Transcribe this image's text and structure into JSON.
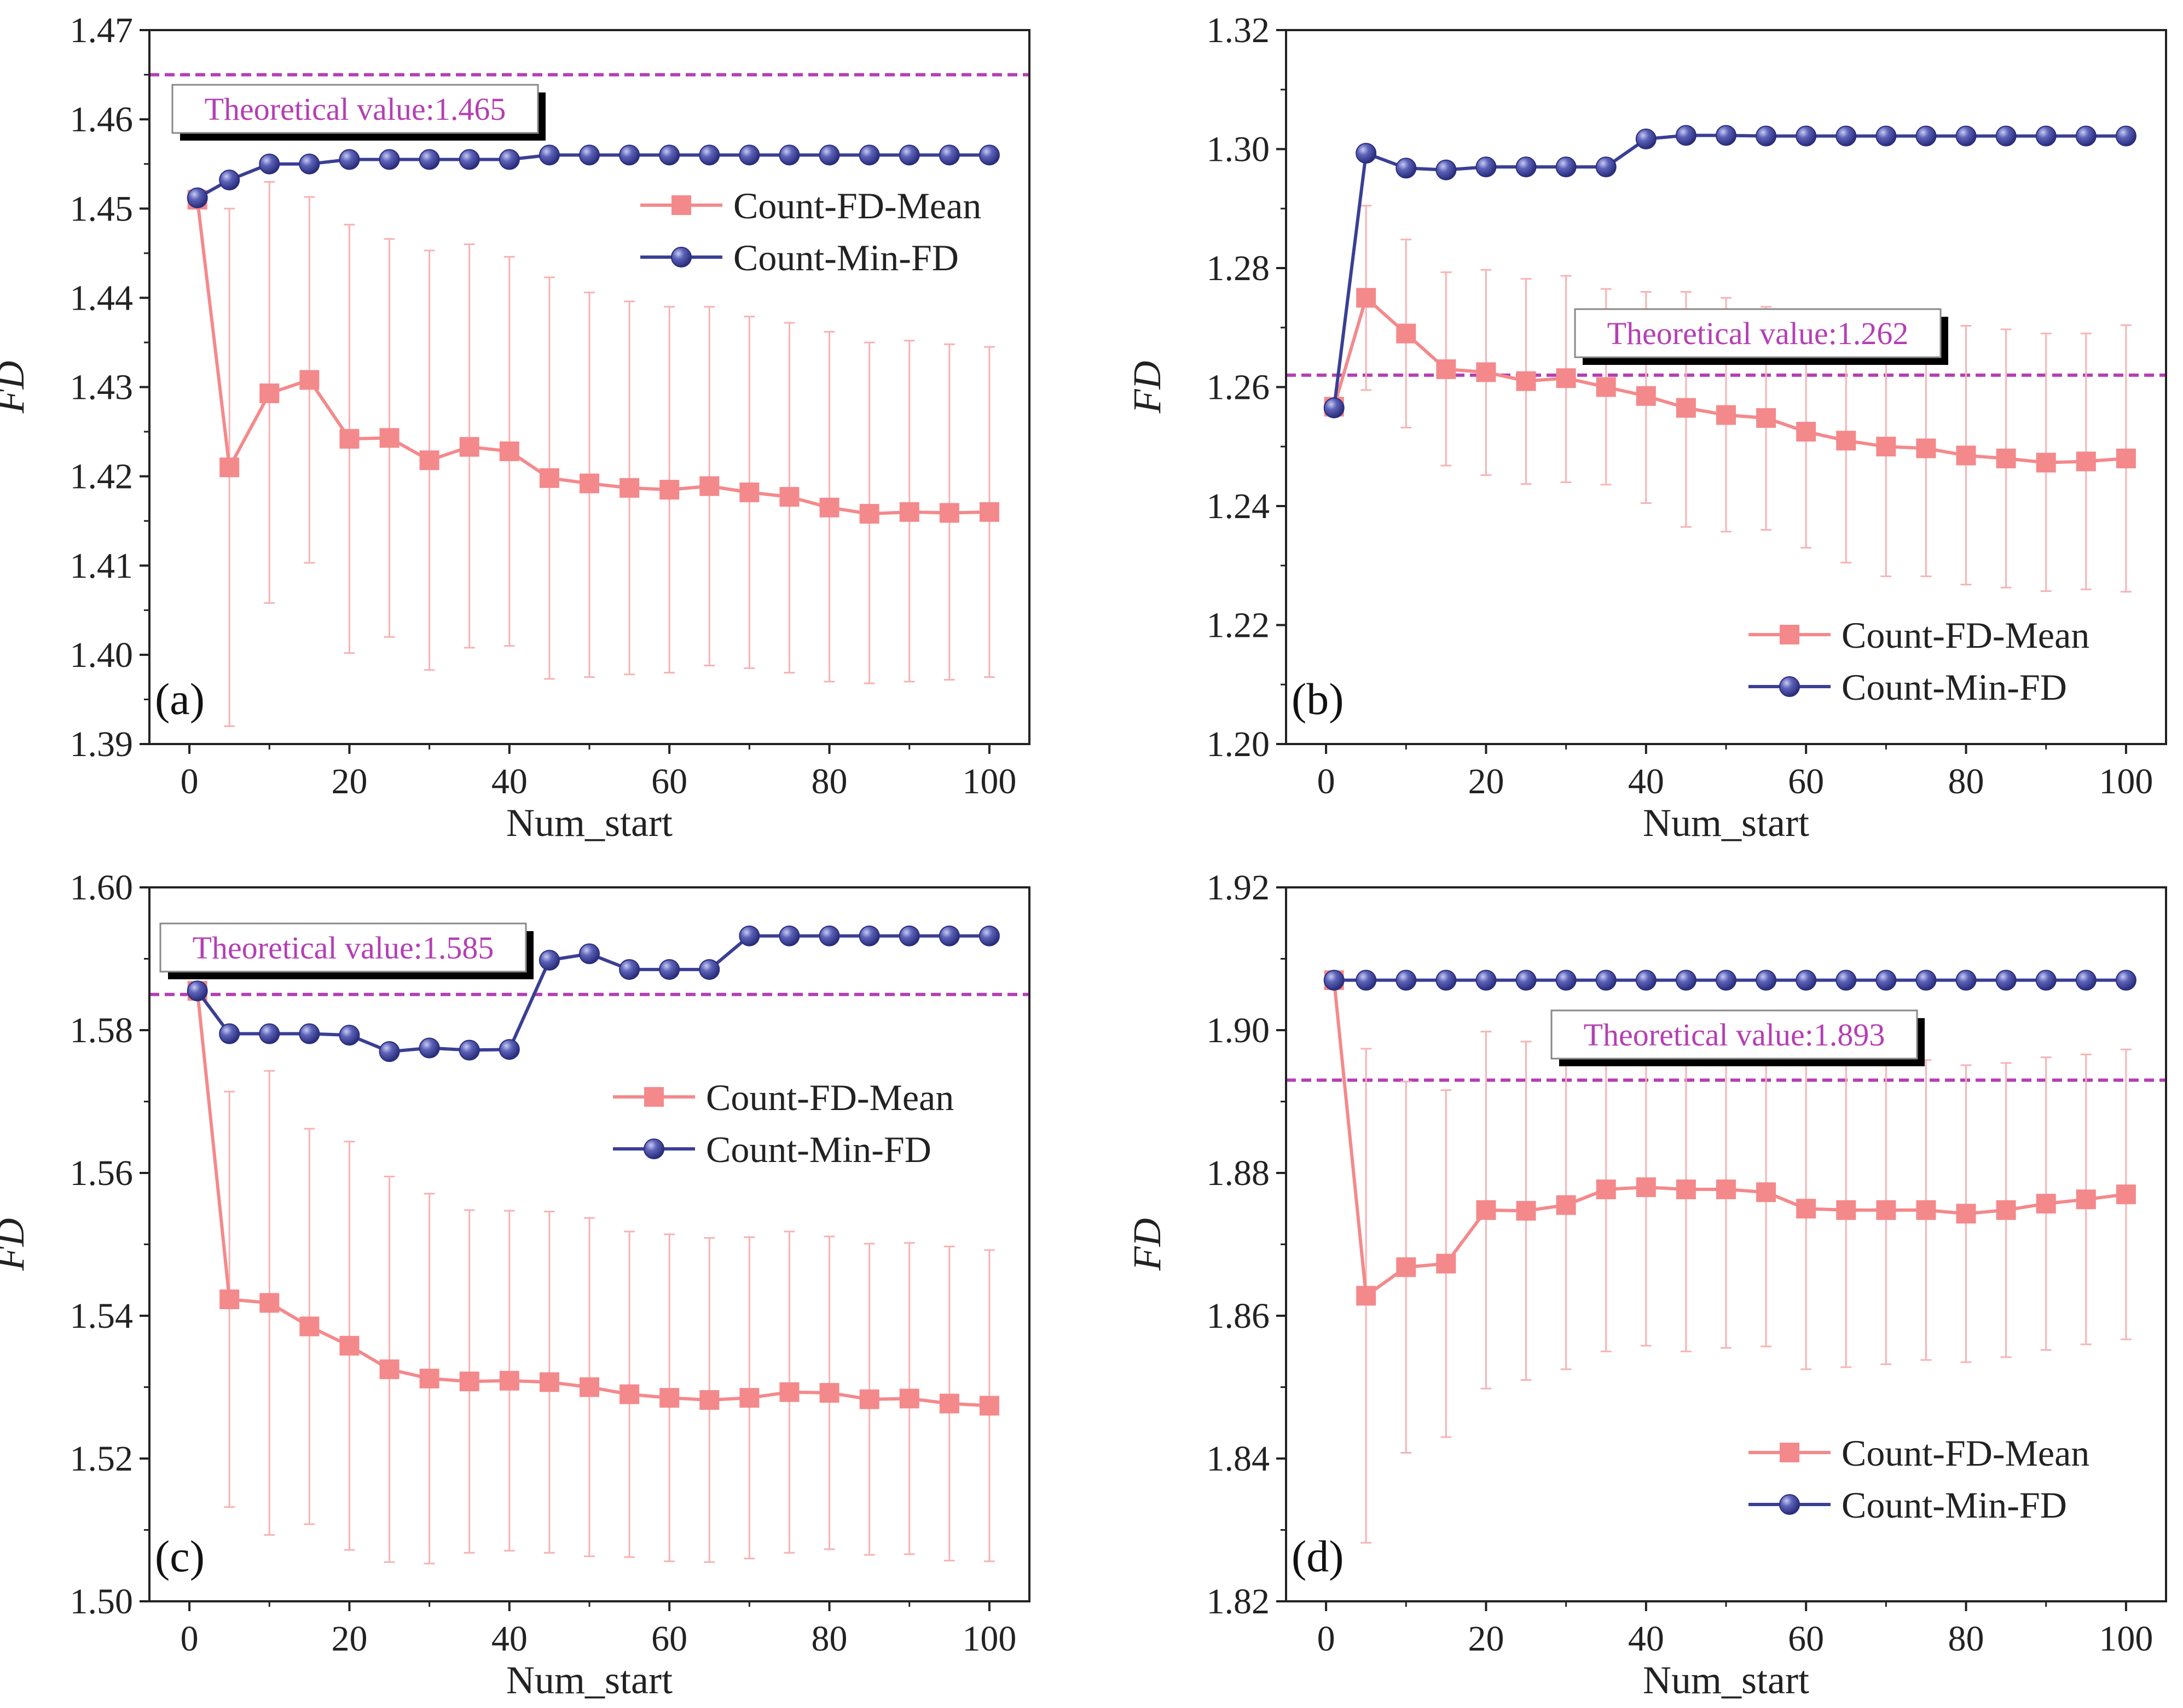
{
  "colors": {
    "mean": "#f4898b",
    "error": "#f7b3b4",
    "min": "#3a3f94",
    "theory": "#b43fb3",
    "axis": "#222222"
  },
  "legend": {
    "mean": "Count-FD-Mean",
    "min": "Count-Min-FD"
  },
  "chart_data": [
    {
      "type": "line",
      "panel_label": "(a)",
      "xlabel": "Num_start",
      "ylabel": "FD",
      "x": [
        1,
        5,
        10,
        15,
        20,
        25,
        30,
        35,
        40,
        45,
        50,
        55,
        60,
        65,
        70,
        75,
        80,
        85,
        90,
        95,
        100
      ],
      "xlim": [
        -5,
        105
      ],
      "xticks": [
        0,
        20,
        40,
        60,
        80,
        100
      ],
      "xtick_labels": [
        "0",
        "20",
        "40",
        "60",
        "80",
        "100"
      ],
      "ylim": [
        1.39,
        1.47
      ],
      "yticks": [
        1.39,
        1.4,
        1.41,
        1.42,
        1.43,
        1.44,
        1.45,
        1.46,
        1.47
      ],
      "ytick_labels": [
        "1.39",
        "1.40",
        "1.41",
        "1.42",
        "1.43",
        "1.44",
        "1.45",
        "1.46",
        "1.47"
      ],
      "theoretical_value": 1.465,
      "theoretical_label": "Theoretical value:1.465",
      "legend_position": "upper-right",
      "series": [
        {
          "name": "Count-FD-Mean",
          "marker": "square",
          "values": [
            1.451,
            1.421,
            1.4293,
            1.4308,
            1.4242,
            1.4243,
            1.4218,
            1.4233,
            1.4228,
            1.4198,
            1.4192,
            1.4187,
            1.4185,
            1.4189,
            1.4182,
            1.4177,
            1.4165,
            1.4158,
            1.416,
            1.4159,
            1.416
          ],
          "error_low": [
            1.451,
            1.392,
            1.4058,
            1.4103,
            1.4002,
            1.402,
            1.3983,
            1.4008,
            1.401,
            1.3973,
            1.3975,
            1.3978,
            1.398,
            1.3988,
            1.3985,
            1.398,
            1.397,
            1.3968,
            1.397,
            1.3972,
            1.3975
          ],
          "error_high": [
            1.451,
            1.45,
            1.453,
            1.4513,
            1.4482,
            1.4466,
            1.4453,
            1.446,
            1.4446,
            1.4423,
            1.4406,
            1.4396,
            1.439,
            1.439,
            1.4379,
            1.4372,
            1.4362,
            1.435,
            1.4352,
            1.4348,
            1.4345
          ]
        },
        {
          "name": "Count-Min-FD",
          "marker": "circle",
          "values": [
            1.4512,
            1.4532,
            1.455,
            1.455,
            1.4555,
            1.4555,
            1.4555,
            1.4555,
            1.4555,
            1.456,
            1.456,
            1.456,
            1.456,
            1.456,
            1.456,
            1.456,
            1.456,
            1.456,
            1.456,
            1.456,
            1.456
          ]
        }
      ]
    },
    {
      "type": "line",
      "panel_label": "(b)",
      "xlabel": "Num_start",
      "ylabel": "FD",
      "x": [
        1,
        5,
        10,
        15,
        20,
        25,
        30,
        35,
        40,
        45,
        50,
        55,
        60,
        65,
        70,
        75,
        80,
        85,
        90,
        95,
        100
      ],
      "xlim": [
        -5,
        105
      ],
      "xticks": [
        0,
        20,
        40,
        60,
        80,
        100
      ],
      "xtick_labels": [
        "0",
        "20",
        "40",
        "60",
        "80",
        "100"
      ],
      "ylim": [
        1.2,
        1.32
      ],
      "yticks": [
        1.2,
        1.22,
        1.24,
        1.26,
        1.28,
        1.3,
        1.32
      ],
      "ytick_labels": [
        "1.20",
        "1.22",
        "1.24",
        "1.26",
        "1.28",
        "1.30",
        "1.32"
      ],
      "theoretical_value": 1.262,
      "theoretical_label": "Theoretical value:1.262",
      "legend_position": "lower-right",
      "series": [
        {
          "name": "Count-FD-Mean",
          "marker": "square",
          "values": [
            1.2567,
            1.275,
            1.269,
            1.263,
            1.2625,
            1.261,
            1.2615,
            1.26,
            1.2585,
            1.2565,
            1.2553,
            1.2548,
            1.2525,
            1.251,
            1.25,
            1.2497,
            1.2485,
            1.248,
            1.2473,
            1.2475,
            1.248
          ],
          "error_low": [
            1.2567,
            1.2595,
            1.2532,
            1.2468,
            1.2452,
            1.2437,
            1.244,
            1.2436,
            1.2405,
            1.2365,
            1.2357,
            1.236,
            1.233,
            1.2305,
            1.2282,
            1.2282,
            1.2268,
            1.2263,
            1.2257,
            1.226,
            1.2256
          ],
          "error_high": [
            1.2567,
            1.2905,
            1.2848,
            1.2793,
            1.2797,
            1.2782,
            1.2787,
            1.2765,
            1.276,
            1.276,
            1.275,
            1.2735,
            1.272,
            1.2712,
            1.2715,
            1.271,
            1.2703,
            1.2697,
            1.269,
            1.269,
            1.2704
          ]
        },
        {
          "name": "Count-Min-FD",
          "marker": "circle",
          "values": [
            1.2565,
            1.2993,
            1.2968,
            1.2965,
            1.297,
            1.297,
            1.297,
            1.297,
            1.3017,
            1.3023,
            1.3023,
            1.3022,
            1.3022,
            1.3022,
            1.3022,
            1.3022,
            1.3022,
            1.3022,
            1.3022,
            1.3022,
            1.3022
          ]
        }
      ]
    },
    {
      "type": "line",
      "panel_label": "(c)",
      "xlabel": "Num_start",
      "ylabel": "FD",
      "x": [
        1,
        5,
        10,
        15,
        20,
        25,
        30,
        35,
        40,
        45,
        50,
        55,
        60,
        65,
        70,
        75,
        80,
        85,
        90,
        95,
        100
      ],
      "xlim": [
        -5,
        105
      ],
      "xticks": [
        0,
        20,
        40,
        60,
        80,
        100
      ],
      "xtick_labels": [
        "0",
        "20",
        "40",
        "60",
        "80",
        "100"
      ],
      "ylim": [
        1.5,
        1.6
      ],
      "yticks": [
        1.5,
        1.52,
        1.54,
        1.56,
        1.58,
        1.6
      ],
      "ytick_labels": [
        "1.50",
        "1.52",
        "1.54",
        "1.56",
        "1.58",
        "1.60"
      ],
      "theoretical_value": 1.585,
      "theoretical_label": "Theoretical value:1.585",
      "legend_position": "upper-right",
      "series": [
        {
          "name": "Count-FD-Mean",
          "marker": "square",
          "values": [
            1.5855,
            1.5423,
            1.5418,
            1.5385,
            1.5358,
            1.5325,
            1.5312,
            1.5308,
            1.5309,
            1.5307,
            1.53,
            1.529,
            1.5285,
            1.5282,
            1.5285,
            1.5293,
            1.5292,
            1.5283,
            1.5284,
            1.5277,
            1.5274
          ],
          "error_low": [
            1.5855,
            1.5132,
            1.5093,
            1.5108,
            1.5072,
            1.5055,
            1.5053,
            1.5068,
            1.5071,
            1.5068,
            1.5063,
            1.5062,
            1.5056,
            1.5055,
            1.506,
            1.5068,
            1.5073,
            1.5065,
            1.5066,
            1.5057,
            1.5056
          ],
          "error_high": [
            1.5855,
            1.5714,
            1.5743,
            1.5662,
            1.5644,
            1.5595,
            1.5571,
            1.5548,
            1.5547,
            1.5546,
            1.5537,
            1.5518,
            1.5514,
            1.5509,
            1.551,
            1.5518,
            1.5511,
            1.5501,
            1.5502,
            1.5497,
            1.5492
          ]
        },
        {
          "name": "Count-Min-FD",
          "marker": "circle",
          "values": [
            1.5855,
            1.5795,
            1.5795,
            1.5795,
            1.5793,
            1.577,
            1.5775,
            1.5772,
            1.5773,
            1.5898,
            1.5907,
            1.5885,
            1.5885,
            1.5885,
            1.5932,
            1.5932,
            1.5932,
            1.5932,
            1.5932,
            1.5932,
            1.5932
          ]
        }
      ]
    },
    {
      "type": "line",
      "panel_label": "(d)",
      "xlabel": "Num_start",
      "ylabel": "FD",
      "x": [
        1,
        5,
        10,
        15,
        20,
        25,
        30,
        35,
        40,
        45,
        50,
        55,
        60,
        65,
        70,
        75,
        80,
        85,
        90,
        95,
        100
      ],
      "xlim": [
        -5,
        105
      ],
      "xticks": [
        0,
        20,
        40,
        60,
        80,
        100
      ],
      "xtick_labels": [
        "0",
        "20",
        "40",
        "60",
        "80",
        "100"
      ],
      "ylim": [
        1.82,
        1.92
      ],
      "yticks": [
        1.82,
        1.84,
        1.86,
        1.88,
        1.9,
        1.92
      ],
      "ytick_labels": [
        "1.82",
        "1.84",
        "1.86",
        "1.88",
        "1.90",
        "1.92"
      ],
      "theoretical_value": 1.893,
      "theoretical_label": "Theoretical value:1.893",
      "legend_position": "lower-right",
      "series": [
        {
          "name": "Count-FD-Mean",
          "marker": "square",
          "values": [
            1.907,
            1.8628,
            1.8668,
            1.8673,
            1.8748,
            1.8747,
            1.8755,
            1.8777,
            1.878,
            1.8777,
            1.8777,
            1.8773,
            1.875,
            1.8748,
            1.8748,
            1.8748,
            1.8743,
            1.8748,
            1.8757,
            1.8763,
            1.877
          ],
          "error_low": [
            1.907,
            1.8282,
            1.8408,
            1.843,
            1.8498,
            1.851,
            1.8525,
            1.855,
            1.8558,
            1.855,
            1.8555,
            1.8557,
            1.8525,
            1.8528,
            1.8532,
            1.8538,
            1.8535,
            1.8542,
            1.8552,
            1.856,
            1.8567
          ],
          "error_high": [
            1.907,
            1.8974,
            1.8928,
            1.8916,
            1.8998,
            1.8984,
            1.8985,
            1.9004,
            1.9002,
            1.9004,
            1.8999,
            1.8989,
            1.8975,
            1.8968,
            1.8964,
            1.8958,
            1.8951,
            1.8954,
            1.8962,
            1.8966,
            1.8973
          ]
        },
        {
          "name": "Count-Min-FD",
          "marker": "circle",
          "values": [
            1.907,
            1.907,
            1.907,
            1.907,
            1.907,
            1.907,
            1.907,
            1.907,
            1.907,
            1.907,
            1.907,
            1.907,
            1.907,
            1.907,
            1.907,
            1.907,
            1.907,
            1.907,
            1.907,
            1.907,
            1.907
          ]
        }
      ]
    }
  ]
}
